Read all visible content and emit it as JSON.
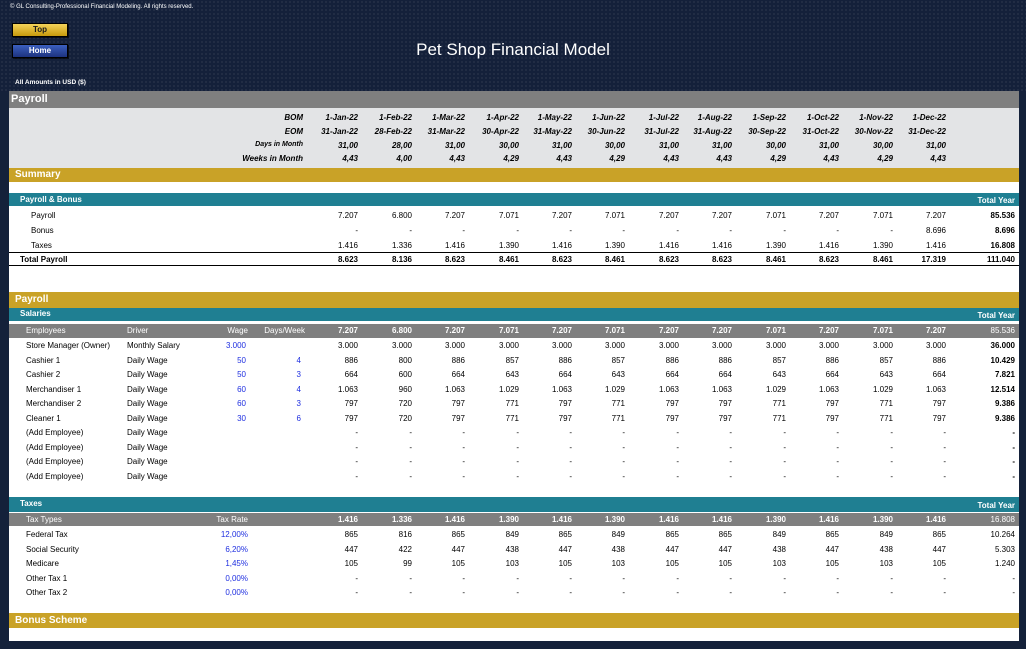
{
  "header": {
    "copyright": "© GL Consulting-Professional Financial Modeling. All rights reserved.",
    "top_label": "Top",
    "home_label": "Home",
    "title": "Pet Shop Financial Model",
    "amounts": "All Amounts in  USD ($)"
  },
  "payroll_title": "Payroll",
  "dates": {
    "bom_label": "BOM",
    "eom_label": "EOM",
    "days_label": "Days in Month",
    "weeks_label": "Weeks in Month",
    "bom": [
      "1-Jan-22",
      "1-Feb-22",
      "1-Mar-22",
      "1-Apr-22",
      "1-May-22",
      "1-Jun-22",
      "1-Jul-22",
      "1-Aug-22",
      "1-Sep-22",
      "1-Oct-22",
      "1-Nov-22",
      "1-Dec-22"
    ],
    "eom": [
      "31-Jan-22",
      "28-Feb-22",
      "31-Mar-22",
      "30-Apr-22",
      "31-May-22",
      "30-Jun-22",
      "31-Jul-22",
      "31-Aug-22",
      "30-Sep-22",
      "31-Oct-22",
      "30-Nov-22",
      "31-Dec-22"
    ],
    "days": [
      "31,00",
      "28,00",
      "31,00",
      "30,00",
      "31,00",
      "30,00",
      "31,00",
      "31,00",
      "30,00",
      "31,00",
      "30,00",
      "31,00"
    ],
    "weeks": [
      "4,43",
      "4,00",
      "4,43",
      "4,29",
      "4,43",
      "4,29",
      "4,43",
      "4,43",
      "4,29",
      "4,43",
      "4,29",
      "4,43"
    ]
  },
  "summary": {
    "title": "Summary",
    "subtitle": "Payroll & Bonus",
    "total_year": "Total Year",
    "rows": [
      {
        "label": "Payroll",
        "values": [
          "7.207",
          "6.800",
          "7.207",
          "7.071",
          "7.207",
          "7.071",
          "7.207",
          "7.207",
          "7.071",
          "7.207",
          "7.071",
          "7.207"
        ],
        "total": "85.536"
      },
      {
        "label": "Bonus",
        "values": [
          "-",
          "-",
          "-",
          "-",
          "-",
          "-",
          "-",
          "-",
          "-",
          "-",
          "-",
          "8.696"
        ],
        "total": "8.696"
      },
      {
        "label": "Taxes",
        "values": [
          "1.416",
          "1.336",
          "1.416",
          "1.390",
          "1.416",
          "1.390",
          "1.416",
          "1.416",
          "1.390",
          "1.416",
          "1.390",
          "1.416"
        ],
        "total": "16.808"
      }
    ],
    "total_row": {
      "label": "Total Payroll",
      "values": [
        "8.623",
        "8.136",
        "8.623",
        "8.461",
        "8.623",
        "8.461",
        "8.623",
        "8.623",
        "8.461",
        "8.623",
        "8.461",
        "17.319"
      ],
      "total": "111.040"
    }
  },
  "payroll": {
    "title": "Payroll",
    "salaries_title": "Salaries",
    "total_year": "Total Year",
    "headers": {
      "employees": "Employees",
      "driver": "Driver",
      "wage": "Wage",
      "days_week": "Days/Week"
    },
    "header_values": [
      "7.207",
      "6.800",
      "7.207",
      "7.071",
      "7.207",
      "7.071",
      "7.207",
      "7.207",
      "7.071",
      "7.207",
      "7.071",
      "7.207"
    ],
    "header_total": "85.536",
    "employees": [
      {
        "name": "Store Manager (Owner)",
        "driver": "Monthly Salary",
        "wage": "3.000",
        "days": "",
        "values": [
          "3.000",
          "3.000",
          "3.000",
          "3.000",
          "3.000",
          "3.000",
          "3.000",
          "3.000",
          "3.000",
          "3.000",
          "3.000",
          "3.000"
        ],
        "total": "36.000"
      },
      {
        "name": "Cashier 1",
        "driver": "Daily Wage",
        "wage": "50",
        "days": "4",
        "values": [
          "886",
          "800",
          "886",
          "857",
          "886",
          "857",
          "886",
          "886",
          "857",
          "886",
          "857",
          "886"
        ],
        "total": "10.429"
      },
      {
        "name": "Cashier 2",
        "driver": "Daily Wage",
        "wage": "50",
        "days": "3",
        "values": [
          "664",
          "600",
          "664",
          "643",
          "664",
          "643",
          "664",
          "664",
          "643",
          "664",
          "643",
          "664"
        ],
        "total": "7.821"
      },
      {
        "name": "Merchandiser 1",
        "driver": "Daily Wage",
        "wage": "60",
        "days": "4",
        "values": [
          "1.063",
          "960",
          "1.063",
          "1.029",
          "1.063",
          "1.029",
          "1.063",
          "1.063",
          "1.029",
          "1.063",
          "1.029",
          "1.063"
        ],
        "total": "12.514"
      },
      {
        "name": "Merchandiser 2",
        "driver": "Daily Wage",
        "wage": "60",
        "days": "3",
        "values": [
          "797",
          "720",
          "797",
          "771",
          "797",
          "771",
          "797",
          "797",
          "771",
          "797",
          "771",
          "797"
        ],
        "total": "9.386"
      },
      {
        "name": "Cleaner 1",
        "driver": "Daily Wage",
        "wage": "30",
        "days": "6",
        "values": [
          "797",
          "720",
          "797",
          "771",
          "797",
          "771",
          "797",
          "797",
          "771",
          "797",
          "771",
          "797"
        ],
        "total": "9.386"
      },
      {
        "name": "(Add Employee)",
        "driver": "Daily Wage",
        "wage": "",
        "days": "",
        "values": [
          "-",
          "-",
          "-",
          "-",
          "-",
          "-",
          "-",
          "-",
          "-",
          "-",
          "-",
          "-"
        ],
        "total": "-"
      },
      {
        "name": "(Add Employee)",
        "driver": "Daily Wage",
        "wage": "",
        "days": "",
        "values": [
          "-",
          "-",
          "-",
          "-",
          "-",
          "-",
          "-",
          "-",
          "-",
          "-",
          "-",
          "-"
        ],
        "total": "-"
      },
      {
        "name": "(Add Employee)",
        "driver": "Daily Wage",
        "wage": "",
        "days": "",
        "values": [
          "-",
          "-",
          "-",
          "-",
          "-",
          "-",
          "-",
          "-",
          "-",
          "-",
          "-",
          "-"
        ],
        "total": "-"
      },
      {
        "name": "(Add Employee)",
        "driver": "Daily Wage",
        "wage": "",
        "days": "",
        "values": [
          "-",
          "-",
          "-",
          "-",
          "-",
          "-",
          "-",
          "-",
          "-",
          "-",
          "-",
          "-"
        ],
        "total": "-"
      }
    ]
  },
  "taxes": {
    "title": "Taxes",
    "total_year": "Total Year",
    "headers": {
      "types": "Tax Types",
      "rate": "Tax Rate"
    },
    "header_values": [
      "1.416",
      "1.336",
      "1.416",
      "1.390",
      "1.416",
      "1.390",
      "1.416",
      "1.416",
      "1.390",
      "1.416",
      "1.390",
      "1.416"
    ],
    "header_total": "16.808",
    "rows": [
      {
        "label": "Federal Tax",
        "rate": "12,00%",
        "values": [
          "865",
          "816",
          "865",
          "849",
          "865",
          "849",
          "865",
          "865",
          "849",
          "865",
          "849",
          "865"
        ],
        "total": "10.264"
      },
      {
        "label": "Social Security",
        "rate": "6,20%",
        "values": [
          "447",
          "422",
          "447",
          "438",
          "447",
          "438",
          "447",
          "447",
          "438",
          "447",
          "438",
          "447"
        ],
        "total": "5.303"
      },
      {
        "label": "Medicare",
        "rate": "1,45%",
        "values": [
          "105",
          "99",
          "105",
          "103",
          "105",
          "103",
          "105",
          "105",
          "103",
          "105",
          "103",
          "105"
        ],
        "total": "1.240"
      },
      {
        "label": "Other Tax 1",
        "rate": "0,00%",
        "values": [
          "-",
          "-",
          "-",
          "-",
          "-",
          "-",
          "-",
          "-",
          "-",
          "-",
          "-",
          "-"
        ],
        "total": "-"
      },
      {
        "label": "Other Tax 2",
        "rate": "0,00%",
        "values": [
          "-",
          "-",
          "-",
          "-",
          "-",
          "-",
          "-",
          "-",
          "-",
          "-",
          "-",
          "-"
        ],
        "total": "-"
      }
    ]
  },
  "bonus": {
    "title": "Bonus Scheme"
  },
  "colors": {
    "navy": "#14213a",
    "gold": "#c9a227",
    "teal": "#1f7f92",
    "gray": "#7f7f7f",
    "lightgray": "#e3e4e6"
  }
}
